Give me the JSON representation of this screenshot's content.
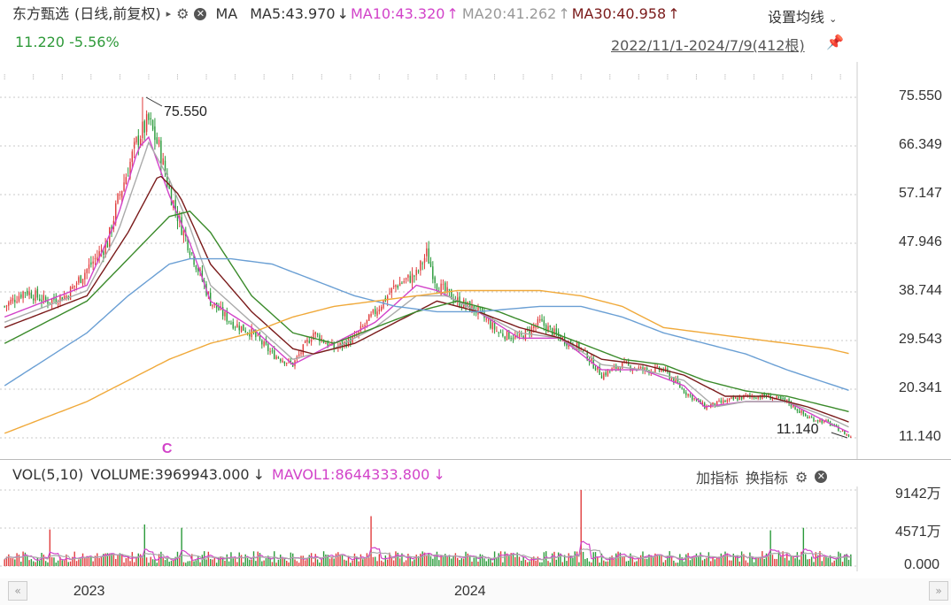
{
  "header": {
    "stock_name": "东方甄选",
    "mode": "(日线,前复权)",
    "ma_label": "MA",
    "ma5": "MA5:43.970",
    "ma10": "MA10:43.320",
    "ma20": "MA20:41.262",
    "ma30": "MA30:40.958",
    "ma5_arrow": "↓",
    "ma10_arrow": "↑",
    "ma20_arrow": "↑",
    "ma30_arrow": "↑",
    "last_price": "11.220",
    "change_pct": "-5.56%",
    "date_range": "2022/11/1-2024/7/9(412根)",
    "settings_label": "设置均线"
  },
  "volume_header": {
    "title": "VOL(5,10)",
    "volume": "VOLUME:3969943.000",
    "volume_arrow": "↓",
    "mavol1": "MAVOL1:8644333.800",
    "mavol1_arrow": "↓",
    "add_indicator": "加指标",
    "switch_indicator": "换指标"
  },
  "annotations": {
    "high_label": "75.550",
    "low_label": "11.140",
    "marker": "C"
  },
  "colors": {
    "up": "#e03c3c",
    "down": "#2a9a3a",
    "ma5": "#d243c9",
    "ma10": "#aaaaaa",
    "ma20": "#7a1a1a",
    "ma30": "#3a8a2a",
    "ma60": "#6a9fd4",
    "ma120": "#f0a93a",
    "grid": "#c8c8c8"
  },
  "chart_data": {
    "type": "candlestick",
    "price_axis": {
      "ticks": [
        "75.550",
        "66.349",
        "57.147",
        "47.946",
        "38.744",
        "29.543",
        "20.341",
        "11.140"
      ],
      "range": [
        11.14,
        75.55
      ]
    },
    "volume_axis": {
      "ticks": [
        "9142万",
        "4571万",
        "0.000"
      ],
      "range": [
        0,
        9142
      ]
    },
    "x_ticks": [
      {
        "label": "2023",
        "index": 42
      },
      {
        "label": "2024",
        "index": 227
      }
    ],
    "bar_count": 412,
    "close_approx": [
      [
        0,
        36
      ],
      [
        10,
        39
      ],
      [
        20,
        37
      ],
      [
        30,
        38
      ],
      [
        40,
        43
      ],
      [
        50,
        48
      ],
      [
        55,
        56
      ],
      [
        60,
        62
      ],
      [
        65,
        68
      ],
      [
        70,
        71
      ],
      [
        75,
        66
      ],
      [
        80,
        58
      ],
      [
        85,
        52
      ],
      [
        90,
        47
      ],
      [
        95,
        42
      ],
      [
        100,
        37
      ],
      [
        110,
        33
      ],
      [
        120,
        31
      ],
      [
        130,
        27
      ],
      [
        140,
        25
      ],
      [
        150,
        31
      ],
      [
        160,
        28
      ],
      [
        170,
        30
      ],
      [
        180,
        35
      ],
      [
        190,
        40
      ],
      [
        200,
        42
      ],
      [
        205,
        46
      ],
      [
        210,
        40
      ],
      [
        220,
        37
      ],
      [
        230,
        35
      ],
      [
        240,
        31
      ],
      [
        250,
        30
      ],
      [
        260,
        33
      ],
      [
        270,
        30
      ],
      [
        280,
        28
      ],
      [
        290,
        23
      ],
      [
        300,
        25
      ],
      [
        310,
        24
      ],
      [
        320,
        24
      ],
      [
        330,
        20
      ],
      [
        340,
        17
      ],
      [
        350,
        18
      ],
      [
        360,
        19
      ],
      [
        370,
        19
      ],
      [
        380,
        18
      ],
      [
        390,
        15
      ],
      [
        400,
        14
      ],
      [
        411,
        11.22
      ]
    ],
    "moving_averages": [
      {
        "name": "MA5",
        "points": [
          [
            0,
            34
          ],
          [
            20,
            37
          ],
          [
            40,
            40
          ],
          [
            55,
            53
          ],
          [
            65,
            66
          ],
          [
            70,
            68
          ],
          [
            80,
            57
          ],
          [
            90,
            48
          ],
          [
            100,
            37
          ],
          [
            120,
            32
          ],
          [
            140,
            25
          ],
          [
            160,
            29
          ],
          [
            180,
            33
          ],
          [
            200,
            40
          ],
          [
            210,
            39
          ],
          [
            230,
            35
          ],
          [
            250,
            30
          ],
          [
            270,
            30
          ],
          [
            290,
            24
          ],
          [
            310,
            24
          ],
          [
            330,
            21
          ],
          [
            340,
            17
          ],
          [
            360,
            18
          ],
          [
            380,
            18
          ],
          [
            400,
            14
          ],
          [
            411,
            12
          ]
        ]
      },
      {
        "name": "MA10",
        "points": [
          [
            0,
            33
          ],
          [
            20,
            36
          ],
          [
            40,
            39
          ],
          [
            55,
            50
          ],
          [
            70,
            67
          ],
          [
            80,
            60
          ],
          [
            90,
            51
          ],
          [
            100,
            40
          ],
          [
            120,
            33
          ],
          [
            140,
            26
          ],
          [
            160,
            28
          ],
          [
            180,
            32
          ],
          [
            200,
            38
          ],
          [
            215,
            38
          ],
          [
            230,
            35
          ],
          [
            250,
            31
          ],
          [
            270,
            30
          ],
          [
            290,
            25
          ],
          [
            310,
            24
          ],
          [
            330,
            22
          ],
          [
            345,
            17
          ],
          [
            360,
            18
          ],
          [
            380,
            18
          ],
          [
            400,
            15
          ],
          [
            411,
            13
          ]
        ]
      },
      {
        "name": "MA20",
        "points": [
          [
            0,
            32
          ],
          [
            20,
            35
          ],
          [
            40,
            38
          ],
          [
            60,
            50
          ],
          [
            75,
            61
          ],
          [
            85,
            57
          ],
          [
            100,
            44
          ],
          [
            120,
            35
          ],
          [
            140,
            28
          ],
          [
            150,
            27
          ],
          [
            170,
            29
          ],
          [
            190,
            33
          ],
          [
            210,
            37
          ],
          [
            230,
            35
          ],
          [
            250,
            32
          ],
          [
            270,
            30
          ],
          [
            290,
            26
          ],
          [
            310,
            25
          ],
          [
            330,
            23
          ],
          [
            350,
            19
          ],
          [
            370,
            19
          ],
          [
            390,
            17
          ],
          [
            411,
            14
          ]
        ]
      },
      {
        "name": "MA30",
        "points": [
          [
            0,
            29
          ],
          [
            20,
            33
          ],
          [
            40,
            37
          ],
          [
            60,
            45
          ],
          [
            80,
            53
          ],
          [
            90,
            54
          ],
          [
            100,
            50
          ],
          [
            120,
            38
          ],
          [
            140,
            31
          ],
          [
            160,
            29
          ],
          [
            180,
            32
          ],
          [
            200,
            35
          ],
          [
            220,
            37
          ],
          [
            240,
            35
          ],
          [
            260,
            32
          ],
          [
            280,
            29
          ],
          [
            300,
            26
          ],
          [
            320,
            25
          ],
          [
            340,
            22
          ],
          [
            360,
            20
          ],
          [
            380,
            19
          ],
          [
            411,
            16
          ]
        ]
      },
      {
        "name": "MA60",
        "points": [
          [
            0,
            21
          ],
          [
            20,
            26
          ],
          [
            40,
            31
          ],
          [
            60,
            38
          ],
          [
            80,
            44
          ],
          [
            90,
            45
          ],
          [
            110,
            45
          ],
          [
            130,
            44
          ],
          [
            150,
            41
          ],
          [
            170,
            38
          ],
          [
            190,
            36
          ],
          [
            210,
            35
          ],
          [
            230,
            35
          ],
          [
            260,
            36
          ],
          [
            280,
            36
          ],
          [
            300,
            34
          ],
          [
            320,
            31
          ],
          [
            340,
            29
          ],
          [
            360,
            27
          ],
          [
            380,
            24
          ],
          [
            411,
            20
          ]
        ]
      },
      {
        "name": "MA120",
        "points": [
          [
            0,
            12
          ],
          [
            20,
            15
          ],
          [
            40,
            18
          ],
          [
            60,
            22
          ],
          [
            80,
            26
          ],
          [
            100,
            29
          ],
          [
            120,
            31
          ],
          [
            140,
            34
          ],
          [
            160,
            36
          ],
          [
            180,
            37
          ],
          [
            200,
            38
          ],
          [
            220,
            39
          ],
          [
            240,
            39
          ],
          [
            260,
            39
          ],
          [
            280,
            38
          ],
          [
            300,
            36
          ],
          [
            320,
            32
          ],
          [
            340,
            31
          ],
          [
            360,
            30
          ],
          [
            380,
            29
          ],
          [
            400,
            28
          ],
          [
            411,
            27
          ]
        ]
      }
    ],
    "high": {
      "index": 67,
      "value": 75.55
    },
    "low": {
      "index": 411,
      "value": 11.14
    },
    "volume_spikes": [
      [
        22,
        4400
      ],
      [
        68,
        5000
      ],
      [
        86,
        4600
      ],
      [
        178,
        6000
      ],
      [
        280,
        9142
      ],
      [
        372,
        4300
      ],
      [
        388,
        4600
      ]
    ]
  }
}
